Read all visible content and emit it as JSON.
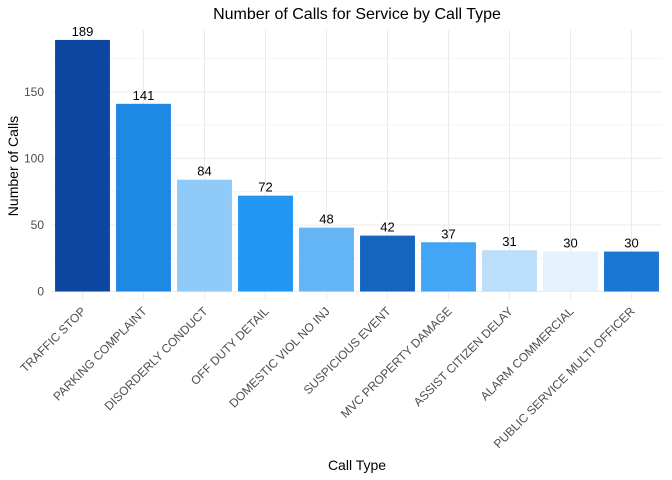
{
  "chart_data": {
    "type": "bar",
    "title": "Number of Calls for Service by Call Type",
    "xlabel": "Call Type",
    "ylabel": "Number of Calls",
    "categories": [
      "TRAFFIC STOP",
      "PARKING COMPLAINT",
      "DISORDERLY CONDUCT",
      "OFF DUTY DETAIL",
      "DOMESTIC VIOL NO INJ",
      "SUSPICIOUS EVENT",
      "MVC PROPERTY DAMAGE",
      "ASSIST CITIZEN DELAY",
      "ALARM COMMERCIAL",
      "PUBLIC SERVICE MULTI OFFICER"
    ],
    "values": [
      189,
      141,
      84,
      72,
      48,
      42,
      37,
      31,
      30,
      30
    ],
    "colors": [
      "#0d47a1",
      "#1e88e5",
      "#90caf9",
      "#2196f3",
      "#64b5f6",
      "#1565c0",
      "#42a5f5",
      "#bbdefb",
      "#e3f2fd",
      "#1976d2"
    ],
    "ylim": [
      0,
      198
    ],
    "yticks": [
      0,
      50,
      100,
      150
    ],
    "grid": true,
    "legend": "none"
  }
}
